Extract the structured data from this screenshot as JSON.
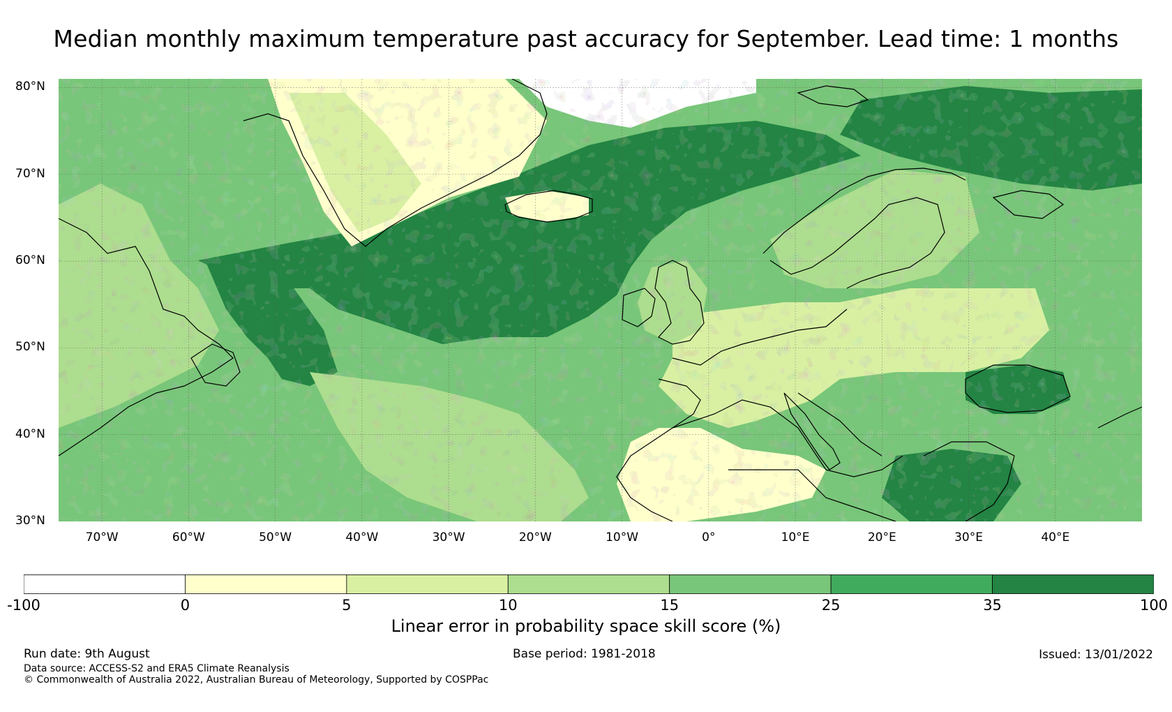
{
  "title": "Median monthly maximum temperature past accuracy for September. Lead time: 1 months",
  "map": {
    "lat_labels": [
      "80°N",
      "70°N",
      "60°N",
      "50°N",
      "40°N",
      "30°N"
    ],
    "lon_labels": [
      "70°W",
      "60°W",
      "50°W",
      "40°W",
      "30°W",
      "20°W",
      "10°W",
      "0°",
      "10°E",
      "20°E",
      "30°E",
      "40°E"
    ],
    "extent": {
      "lon_min": -75,
      "lon_max": 50,
      "lat_min": 30,
      "lat_max": 81
    },
    "gridlines": true
  },
  "colorbar": {
    "label": "Linear error in probability space skill score (%)",
    "ticks": [
      "-100",
      "0",
      "5",
      "10",
      "15",
      "25",
      "35",
      "100"
    ],
    "colors": [
      "#ffffff",
      "#ffffcc",
      "#d9f0a3",
      "#addd8e",
      "#78c679",
      "#41ab5d",
      "#238443"
    ]
  },
  "footer": {
    "run_date": "Run date: 9th August",
    "base_period": "Base period: 1981-2018",
    "issued": "Issued: 13/01/2022",
    "data_source": "Data source: ACCESS-S2 and ERA5 Climate Reanalysis",
    "copyright": "© Commonwealth of Australia 2022, Australian Bureau of Meteorology, Supported by COSPPac"
  }
}
